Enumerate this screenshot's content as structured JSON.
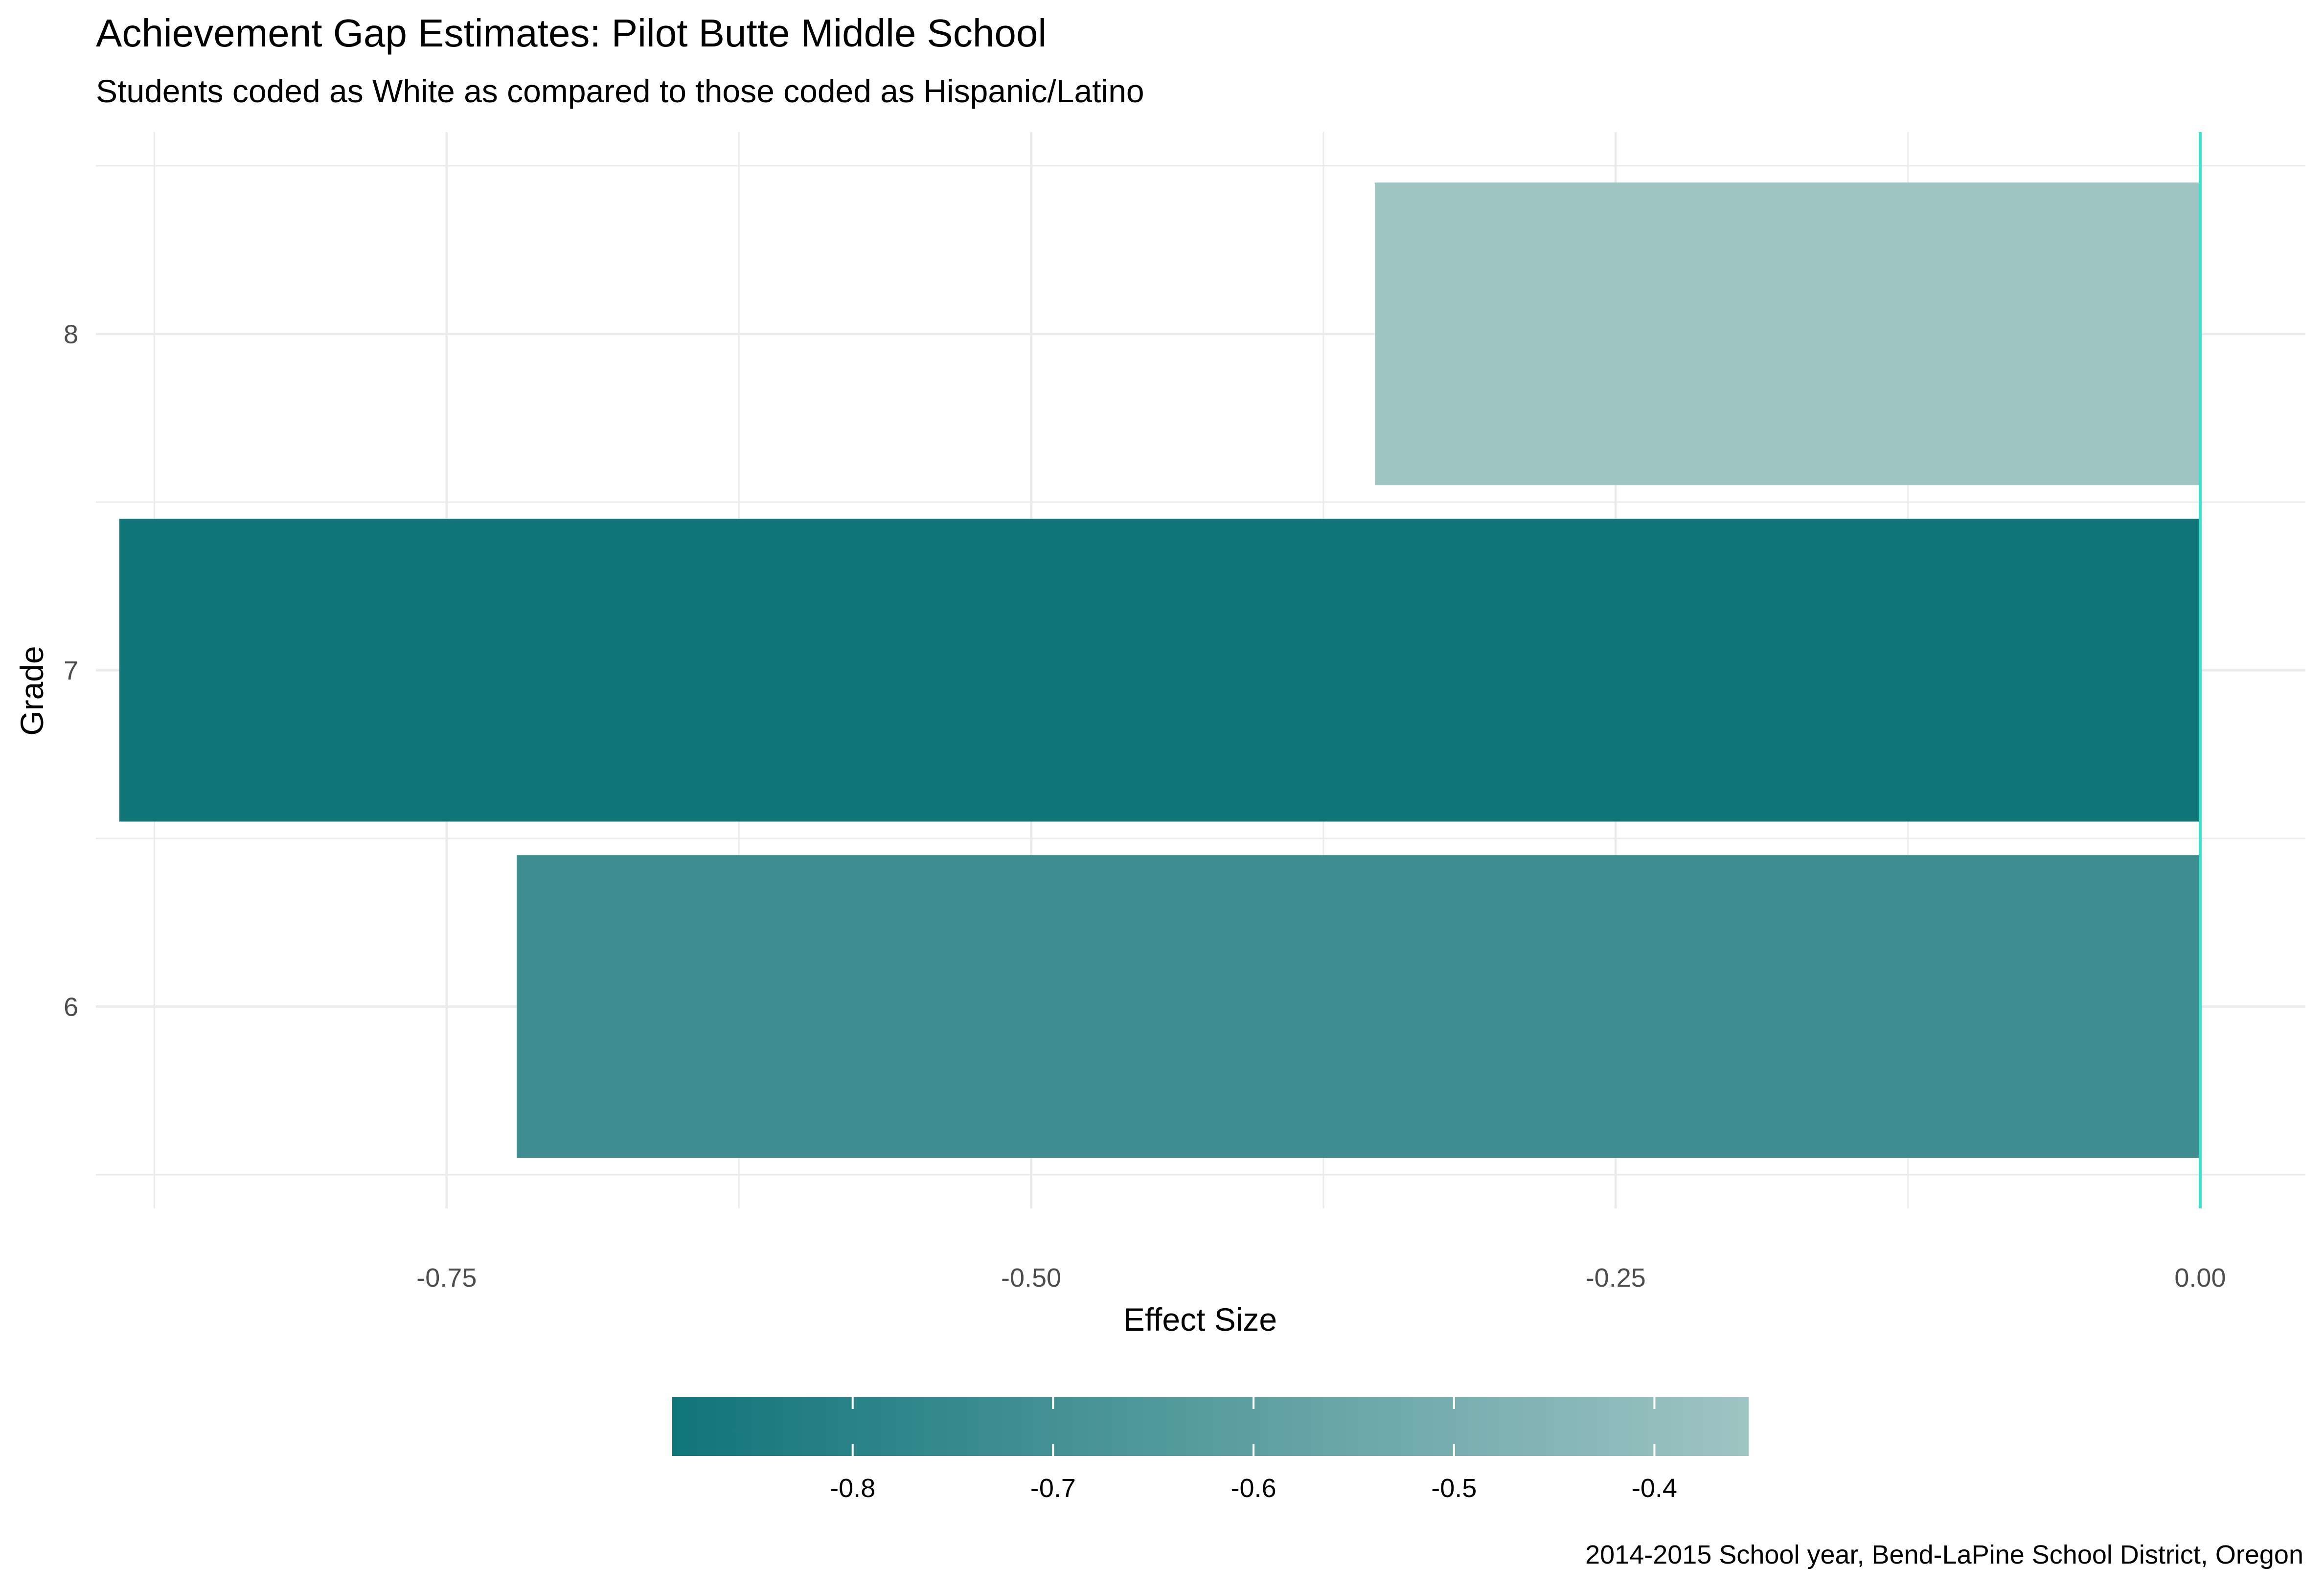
{
  "chart_data": {
    "type": "bar",
    "orientation": "horizontal",
    "title": "Achievement Gap Estimates: Pilot Butte Middle School",
    "subtitle": "Students coded as White as compared to those coded as Hispanic/Latino",
    "xlabel": "Effect Size",
    "ylabel": "Grade",
    "caption": "2014-2015 School year, Bend-LaPine School District, Oregon",
    "categories": [
      "6",
      "7",
      "8"
    ],
    "values": [
      -0.72,
      -0.89,
      -0.353
    ],
    "xlim": [
      -0.9,
      0.045
    ],
    "xticks": [
      {
        "value": -0.75,
        "label": "-0.75"
      },
      {
        "value": -0.5,
        "label": "-0.50"
      },
      {
        "value": -0.25,
        "label": "-0.25"
      },
      {
        "value": 0,
        "label": "0.00"
      }
    ],
    "reference_line": {
      "value": 0,
      "color": "#40E0D0"
    },
    "grid": true,
    "legend": {
      "type": "colorbar",
      "position": "bottom",
      "range": [
        -0.89,
        -0.353
      ],
      "color_low": "#11757A",
      "color_high": "#9FC4C4",
      "ticks": [
        {
          "value": -0.8,
          "label": "-0.8"
        },
        {
          "value": -0.7,
          "label": "-0.7"
        },
        {
          "value": -0.6,
          "label": "-0.6"
        },
        {
          "value": -0.5,
          "label": "-0.5"
        },
        {
          "value": -0.4,
          "label": "-0.4"
        }
      ]
    }
  }
}
